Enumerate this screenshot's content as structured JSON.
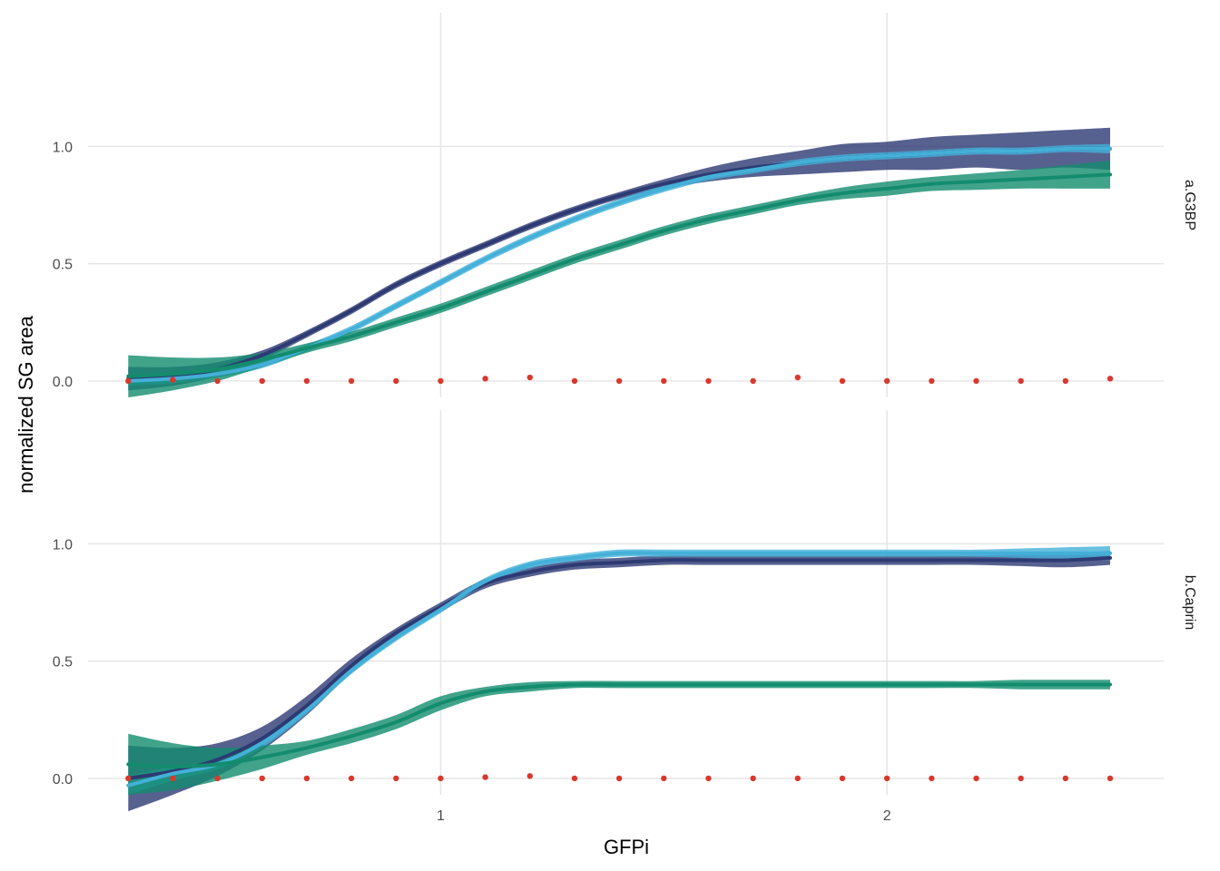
{
  "chart_data": {
    "type": "line",
    "xlabel": "GFPi",
    "ylabel": "normalized SG area",
    "x_ticks": [
      1,
      2
    ],
    "x_tick_labels": [
      "1",
      "2"
    ],
    "y_ticks": [
      0,
      0.5,
      1
    ],
    "y_tick_labels": [
      "0.0",
      "0.5",
      "1.0"
    ],
    "xlim": [
      0.21,
      2.62
    ],
    "grid": true,
    "legend": "none",
    "colors": {
      "series_a": "#2d3a73",
      "series_b": "#44b0d8",
      "series_c": "#138c6e",
      "points": "#d9382c",
      "grid": "#e6e6e6"
    },
    "panels": [
      {
        "strip": "a.G3BP",
        "ylim": [
          -0.07,
          1.57
        ],
        "series": [
          {
            "color_key": "series_a",
            "x": [
              0.3,
              0.4,
              0.5,
              0.6,
              0.7,
              0.8,
              0.9,
              1.0,
              1.1,
              1.2,
              1.3,
              1.4,
              1.5,
              1.6,
              1.7,
              1.8,
              1.9,
              2.0,
              2.1,
              2.2,
              2.3,
              2.4,
              2.5
            ],
            "values": [
              0.01,
              0.02,
              0.05,
              0.11,
              0.2,
              0.3,
              0.41,
              0.5,
              0.58,
              0.66,
              0.73,
              0.79,
              0.84,
              0.88,
              0.91,
              0.93,
              0.95,
              0.96,
              0.97,
              0.98,
              0.98,
              0.99,
              0.99
            ],
            "band": [
              0.05,
              0.04,
              0.03,
              0.02,
              0.015,
              0.015,
              0.015,
              0.015,
              0.015,
              0.015,
              0.015,
              0.015,
              0.02,
              0.03,
              0.04,
              0.05,
              0.06,
              0.06,
              0.07,
              0.07,
              0.08,
              0.08,
              0.09
            ]
          },
          {
            "color_key": "series_b",
            "x": [
              0.3,
              0.4,
              0.5,
              0.6,
              0.7,
              0.8,
              0.9,
              1.0,
              1.1,
              1.2,
              1.3,
              1.4,
              1.5,
              1.6,
              1.7,
              1.8,
              1.9,
              2.0,
              2.1,
              2.2,
              2.3,
              2.4,
              2.5
            ],
            "values": [
              0.0,
              0.01,
              0.03,
              0.07,
              0.14,
              0.22,
              0.32,
              0.42,
              0.52,
              0.61,
              0.69,
              0.76,
              0.82,
              0.87,
              0.9,
              0.93,
              0.95,
              0.96,
              0.97,
              0.98,
              0.98,
              0.99,
              0.99
            ],
            "band": [
              0.02,
              0.02,
              0.015,
              0.015,
              0.015,
              0.015,
              0.015,
              0.015,
              0.015,
              0.015,
              0.015,
              0.015,
              0.015,
              0.015,
              0.015,
              0.015,
              0.015,
              0.015,
              0.015,
              0.015,
              0.015,
              0.015,
              0.02
            ]
          },
          {
            "color_key": "series_c",
            "x": [
              0.3,
              0.4,
              0.5,
              0.6,
              0.7,
              0.8,
              0.9,
              1.0,
              1.1,
              1.2,
              1.3,
              1.4,
              1.5,
              1.6,
              1.7,
              1.8,
              1.9,
              2.0,
              2.1,
              2.2,
              2.3,
              2.4,
              2.5
            ],
            "values": [
              0.02,
              0.03,
              0.05,
              0.09,
              0.14,
              0.19,
              0.25,
              0.31,
              0.38,
              0.45,
              0.52,
              0.58,
              0.64,
              0.69,
              0.73,
              0.77,
              0.8,
              0.82,
              0.84,
              0.85,
              0.86,
              0.87,
              0.88
            ],
            "band": [
              0.09,
              0.07,
              0.05,
              0.03,
              0.02,
              0.02,
              0.02,
              0.02,
              0.02,
              0.02,
              0.02,
              0.02,
              0.02,
              0.02,
              0.02,
              0.02,
              0.025,
              0.03,
              0.03,
              0.035,
              0.04,
              0.05,
              0.06
            ]
          }
        ],
        "points": {
          "x": [
            0.3,
            0.4,
            0.5,
            0.6,
            0.7,
            0.8,
            0.9,
            1.0,
            1.1,
            1.2,
            1.3,
            1.4,
            1.5,
            1.6,
            1.7,
            1.8,
            1.9,
            2.0,
            2.1,
            2.2,
            2.3,
            2.4,
            2.5
          ],
          "values": [
            0.0,
            0.005,
            0.0,
            0.0,
            0.0,
            0.0,
            0.0,
            0.0,
            0.01,
            0.015,
            0.0,
            0.0,
            0.0,
            0.0,
            0.0,
            0.015,
            0.0,
            0.0,
            0.0,
            0.0,
            0.0,
            0.0,
            0.01
          ]
        }
      },
      {
        "strip": "b.Caprin",
        "ylim": [
          -0.07,
          1.57
        ],
        "series": [
          {
            "color_key": "series_a",
            "x": [
              0.3,
              0.4,
              0.5,
              0.6,
              0.7,
              0.8,
              0.9,
              1.0,
              1.1,
              1.2,
              1.3,
              1.4,
              1.5,
              1.6,
              1.7,
              1.8,
              1.9,
              2.0,
              2.1,
              2.2,
              2.3,
              2.4,
              2.5
            ],
            "values": [
              0.0,
              0.03,
              0.08,
              0.17,
              0.31,
              0.48,
              0.62,
              0.73,
              0.83,
              0.88,
              0.91,
              0.92,
              0.93,
              0.93,
              0.93,
              0.93,
              0.93,
              0.93,
              0.93,
              0.93,
              0.93,
              0.93,
              0.94
            ],
            "band": [
              0.14,
              0.1,
              0.07,
              0.05,
              0.04,
              0.03,
              0.02,
              0.02,
              0.02,
              0.02,
              0.02,
              0.02,
              0.02,
              0.02,
              0.02,
              0.02,
              0.02,
              0.02,
              0.02,
              0.02,
              0.025,
              0.03,
              0.03
            ]
          },
          {
            "color_key": "series_b",
            "x": [
              0.3,
              0.4,
              0.5,
              0.6,
              0.7,
              0.8,
              0.9,
              1.0,
              1.1,
              1.2,
              1.3,
              1.4,
              1.5,
              1.6,
              1.7,
              1.8,
              1.9,
              2.0,
              2.1,
              2.2,
              2.3,
              2.4,
              2.5
            ],
            "values": [
              -0.03,
              0.02,
              0.06,
              0.15,
              0.29,
              0.46,
              0.6,
              0.72,
              0.84,
              0.91,
              0.94,
              0.96,
              0.96,
              0.96,
              0.96,
              0.96,
              0.96,
              0.96,
              0.96,
              0.96,
              0.96,
              0.96,
              0.96
            ],
            "band": [
              0.04,
              0.03,
              0.02,
              0.02,
              0.015,
              0.015,
              0.015,
              0.015,
              0.015,
              0.015,
              0.015,
              0.015,
              0.015,
              0.015,
              0.015,
              0.015,
              0.015,
              0.015,
              0.015,
              0.015,
              0.02,
              0.025,
              0.03
            ]
          },
          {
            "color_key": "series_c",
            "x": [
              0.3,
              0.4,
              0.5,
              0.6,
              0.7,
              0.8,
              0.9,
              1.0,
              1.1,
              1.2,
              1.3,
              1.4,
              1.5,
              1.6,
              1.7,
              1.8,
              1.9,
              2.0,
              2.1,
              2.2,
              2.3,
              2.4,
              2.5
            ],
            "values": [
              0.06,
              0.05,
              0.06,
              0.09,
              0.13,
              0.18,
              0.24,
              0.32,
              0.37,
              0.39,
              0.4,
              0.4,
              0.4,
              0.4,
              0.4,
              0.4,
              0.4,
              0.4,
              0.4,
              0.4,
              0.4,
              0.4,
              0.4
            ],
            "band": [
              0.13,
              0.1,
              0.07,
              0.05,
              0.03,
              0.03,
              0.03,
              0.03,
              0.02,
              0.02,
              0.015,
              0.015,
              0.015,
              0.015,
              0.015,
              0.015,
              0.015,
              0.015,
              0.015,
              0.015,
              0.02,
              0.02,
              0.02
            ]
          }
        ],
        "points": {
          "x": [
            0.3,
            0.4,
            0.5,
            0.6,
            0.7,
            0.8,
            0.9,
            1.0,
            1.1,
            1.2,
            1.3,
            1.4,
            1.5,
            1.6,
            1.7,
            1.8,
            1.9,
            2.0,
            2.1,
            2.2,
            2.3,
            2.4,
            2.5
          ],
          "values": [
            0.0,
            0.0,
            0.0,
            0.0,
            0.0,
            0.0,
            0.0,
            0.0,
            0.005,
            0.01,
            0.0,
            0.0,
            0.0,
            0.0,
            0.0,
            0.0,
            0.0,
            0.0,
            0.0,
            0.0,
            0.0,
            0.0,
            0.0
          ]
        }
      }
    ]
  }
}
